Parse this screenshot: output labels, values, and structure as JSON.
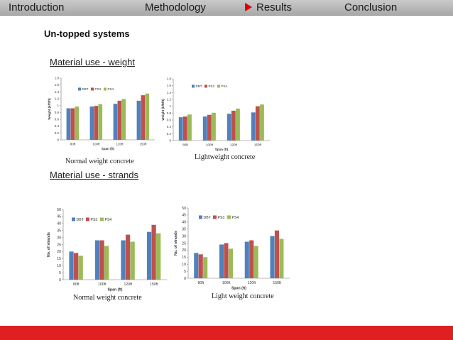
{
  "nav": {
    "items": [
      "Introduction",
      "Methodology",
      "Results",
      "Conclusion"
    ],
    "active": "Results"
  },
  "heading": "Un-topped systems",
  "sections": {
    "weight": "Material use - weight",
    "strands": "Material use - strands"
  },
  "colors": {
    "DBT": "#4f81bd",
    "PS3": "#c0504d",
    "PS4": "#9bbb59"
  },
  "chart_data": [
    {
      "type": "bar",
      "caption": "Normal weight concrete",
      "xlabel": "Span (ft)",
      "ylabel": "Weight (k/ft/ft)",
      "categories": [
        "80ft",
        "100ft",
        "120ft",
        "150ft"
      ],
      "ylim": [
        0,
        1.8
      ],
      "yticks": [
        0,
        0.2,
        0.4,
        0.6,
        0.8,
        1,
        1.2,
        1.4,
        1.6,
        1.8
      ],
      "legend": "top-left",
      "series": [
        {
          "name": "DBT",
          "values": [
            0.92,
            0.97,
            1.05,
            1.14
          ]
        },
        {
          "name": "PS3",
          "values": [
            0.92,
            0.99,
            1.14,
            1.3
          ]
        },
        {
          "name": "PS4",
          "values": [
            0.97,
            1.04,
            1.19,
            1.35
          ]
        }
      ]
    },
    {
      "type": "bar",
      "caption": "Lightweight concrete",
      "xlabel": "Span (ft)",
      "ylabel": "Weight (k/ft/ft)",
      "categories": [
        "80ft",
        "100ft",
        "120ft",
        "150ft"
      ],
      "ylim": [
        0,
        1.8
      ],
      "yticks": [
        0,
        0.2,
        0.4,
        0.6,
        0.8,
        1,
        1.2,
        1.4,
        1.6,
        1.8
      ],
      "legend": "top-left",
      "series": [
        {
          "name": "DBT",
          "values": [
            0.68,
            0.7,
            0.78,
            0.82
          ]
        },
        {
          "name": "PS3",
          "values": [
            0.7,
            0.75,
            0.87,
            1.0
          ]
        },
        {
          "name": "PS4",
          "values": [
            0.76,
            0.81,
            0.93,
            1.05
          ]
        }
      ]
    },
    {
      "type": "bar",
      "caption": "Normal weight concrete",
      "xlabel": "Span (ft)",
      "ylabel": "No. of strands",
      "categories": [
        "80ft",
        "100ft",
        "120ft",
        "150ft"
      ],
      "ylim": [
        0,
        50
      ],
      "yticks": [
        0,
        5,
        10,
        15,
        20,
        25,
        30,
        35,
        40,
        45,
        50
      ],
      "legend": "top-left",
      "series": [
        {
          "name": "DBT",
          "values": [
            20,
            28,
            28,
            34
          ]
        },
        {
          "name": "PS3",
          "values": [
            19,
            28,
            32,
            39
          ]
        },
        {
          "name": "PS4",
          "values": [
            17,
            24,
            27,
            33
          ]
        }
      ]
    },
    {
      "type": "bar",
      "caption": "Light weight concrete",
      "xlabel": "Span (ft)",
      "ylabel": "No. of strands",
      "categories": [
        "80ft",
        "100ft",
        "120ft",
        "150ft"
      ],
      "ylim": [
        0,
        50
      ],
      "yticks": [
        0,
        5,
        10,
        15,
        20,
        25,
        30,
        35,
        40,
        45,
        50
      ],
      "legend": "top-left",
      "series": [
        {
          "name": "DBT",
          "values": [
            18,
            24,
            26,
            30
          ]
        },
        {
          "name": "PS3",
          "values": [
            17,
            25,
            27,
            34
          ]
        },
        {
          "name": "PS4",
          "values": [
            15,
            21,
            23,
            28
          ]
        }
      ]
    }
  ]
}
